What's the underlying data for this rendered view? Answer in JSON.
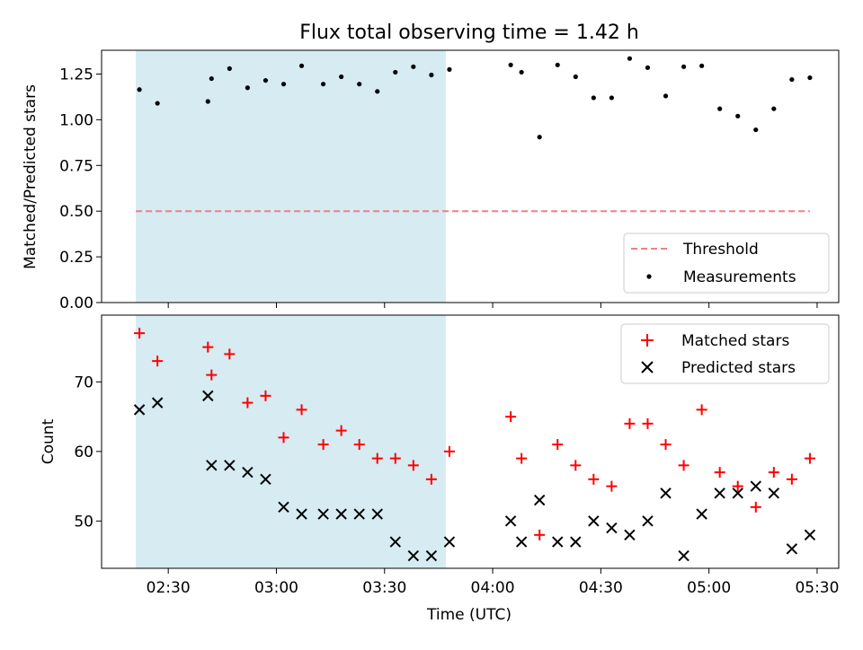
{
  "chart_data": {
    "type": "scatter",
    "title": "Flux total observing time = 1.42 h",
    "xlabel": "Time (UTC)",
    "x_ticks": [
      "02:30",
      "03:00",
      "03:30",
      "04:00",
      "04:30",
      "05:00",
      "05:30"
    ],
    "shaded_interval": [
      "02:21",
      "03:47"
    ],
    "shaded_color": "#add8e6",
    "panels": [
      {
        "ylabel": "Matched/Predicted stars",
        "ylim": [
          0,
          1.38
        ],
        "y_ticks": [
          "0.00",
          "0.25",
          "0.50",
          "0.75",
          "1.00",
          "1.25"
        ],
        "legend_position": "lower-right",
        "series": [
          {
            "name": "Threshold",
            "style": "dashed-line",
            "color": "#f08080",
            "x": [
              "02:21",
              "05:28"
            ],
            "y": [
              0.5,
              0.5
            ]
          },
          {
            "name": "Measurements",
            "style": "dot",
            "color": "#000000",
            "x": [
              "02:22",
              "02:27",
              "02:41",
              "02:42",
              "02:47",
              "02:52",
              "02:57",
              "03:02",
              "03:07",
              "03:13",
              "03:18",
              "03:23",
              "03:28",
              "03:33",
              "03:38",
              "03:43",
              "03:48",
              "04:05",
              "04:08",
              "04:13",
              "04:18",
              "04:23",
              "04:28",
              "04:33",
              "04:38",
              "04:43",
              "04:48",
              "04:53",
              "04:58",
              "05:03",
              "05:08",
              "05:13",
              "05:18",
              "05:23",
              "05:28"
            ],
            "y": [
              1.165,
              1.09,
              1.1,
              1.225,
              1.28,
              1.175,
              1.215,
              1.195,
              1.295,
              1.195,
              1.235,
              1.195,
              1.155,
              1.26,
              1.29,
              1.245,
              1.275,
              1.3,
              1.26,
              0.905,
              1.3,
              1.235,
              1.12,
              1.12,
              1.335,
              1.285,
              1.13,
              1.29,
              1.295,
              1.06,
              1.02,
              0.945,
              1.06,
              1.22,
              1.23
            ]
          }
        ]
      },
      {
        "ylabel": "Count",
        "ylim": [
          43.2,
          79.6
        ],
        "y_ticks": [
          "50",
          "60",
          "70"
        ],
        "legend_position": "upper-right",
        "series": [
          {
            "name": "Matched stars",
            "style": "plus",
            "color": "#ff0000",
            "x": [
              "02:22",
              "02:27",
              "02:41",
              "02:42",
              "02:47",
              "02:52",
              "02:57",
              "03:02",
              "03:07",
              "03:13",
              "03:18",
              "03:23",
              "03:28",
              "03:33",
              "03:38",
              "03:43",
              "03:48",
              "04:05",
              "04:08",
              "04:13",
              "04:18",
              "04:23",
              "04:28",
              "04:33",
              "04:38",
              "04:43",
              "04:48",
              "04:53",
              "04:58",
              "05:03",
              "05:08",
              "05:13",
              "05:18",
              "05:23",
              "05:28"
            ],
            "y": [
              77,
              73,
              75,
              71,
              74,
              67,
              68,
              62,
              66,
              61,
              63,
              61,
              59,
              59,
              58,
              56,
              60,
              65,
              59,
              48,
              61,
              58,
              56,
              55,
              64,
              64,
              61,
              58,
              66,
              57,
              55,
              52,
              57,
              56,
              59
            ]
          },
          {
            "name": "Predicted stars",
            "style": "x",
            "color": "#000000",
            "x": [
              "02:22",
              "02:27",
              "02:41",
              "02:42",
              "02:47",
              "02:52",
              "02:57",
              "03:02",
              "03:07",
              "03:13",
              "03:18",
              "03:23",
              "03:28",
              "03:33",
              "03:38",
              "03:43",
              "03:48",
              "04:05",
              "04:08",
              "04:13",
              "04:18",
              "04:23",
              "04:28",
              "04:33",
              "04:38",
              "04:43",
              "04:48",
              "04:53",
              "04:58",
              "05:03",
              "05:08",
              "05:13",
              "05:18",
              "05:23",
              "05:28"
            ],
            "y": [
              66,
              67,
              68,
              58,
              58,
              57,
              56,
              52,
              51,
              51,
              51,
              51,
              51,
              47,
              45,
              45,
              47,
              50,
              47,
              53,
              47,
              47,
              50,
              49,
              48,
              50,
              54,
              45,
              51,
              54,
              54,
              55,
              54,
              46,
              48
            ]
          }
        ]
      }
    ]
  }
}
